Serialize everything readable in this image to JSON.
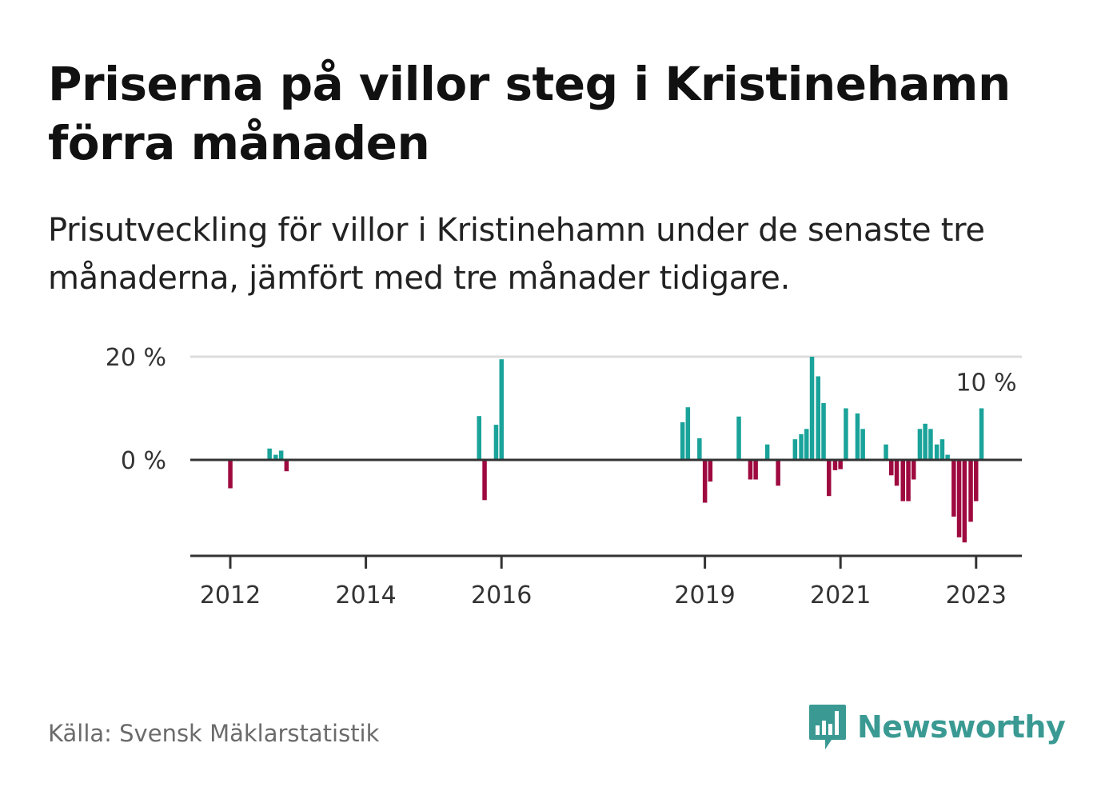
{
  "title": "Priserna på villor steg i Kristinehamn förra månaden",
  "subtitle": "Prisutveckling för villor i Kristinehamn under de senaste tre månaderna, jämfört med tre månader tidigare.",
  "source": "Källa: Svensk Mäklarstatistik",
  "brand": {
    "name": "Newsworthy",
    "logo_icon": "newsworthy-logo-icon",
    "color": "#3a9a93"
  },
  "colors": {
    "positive": "#1aa39a",
    "negative": "#9e0a3f",
    "grid": "#dddddd",
    "axis": "#333333"
  },
  "chart_data": {
    "type": "bar",
    "ylim": [
      -18,
      20
    ],
    "yticks": [
      {
        "value": 20,
        "label": "20 %"
      },
      {
        "value": 0,
        "label": "0 %"
      }
    ],
    "xlim": [
      2011.4,
      2023.7
    ],
    "xticks": [
      {
        "value": 2012,
        "label": "2012"
      },
      {
        "value": 2014,
        "label": "2014"
      },
      {
        "value": 2016,
        "label": "2016"
      },
      {
        "value": 2019,
        "label": "2019"
      },
      {
        "value": 2021,
        "label": "2021"
      },
      {
        "value": 2023,
        "label": "2023"
      }
    ],
    "annotation": {
      "label": "10 %",
      "x": 2023.08,
      "y": 10
    },
    "series": [
      {
        "points": [
          [
            2012.0,
            -5.5
          ],
          [
            2012.58,
            2.2
          ],
          [
            2012.67,
            1.0
          ],
          [
            2012.75,
            1.8
          ],
          [
            2012.83,
            -2.2
          ],
          [
            2015.67,
            8.5
          ],
          [
            2015.75,
            -7.8
          ],
          [
            2015.92,
            6.8
          ],
          [
            2016.0,
            19.5
          ],
          [
            2018.67,
            7.3
          ],
          [
            2018.75,
            10.2
          ],
          [
            2018.92,
            4.2
          ],
          [
            2019.0,
            -8.3
          ],
          [
            2019.08,
            -4.2
          ],
          [
            2019.5,
            8.4
          ],
          [
            2019.67,
            -3.8
          ],
          [
            2019.75,
            -3.8
          ],
          [
            2019.92,
            3.0
          ],
          [
            2020.08,
            -5.0
          ],
          [
            2020.33,
            4.0
          ],
          [
            2020.42,
            5.0
          ],
          [
            2020.5,
            6.0
          ],
          [
            2020.58,
            20.0
          ],
          [
            2020.67,
            16.2
          ],
          [
            2020.75,
            11.0
          ],
          [
            2020.83,
            -7.0
          ],
          [
            2020.92,
            -2.0
          ],
          [
            2021.0,
            -1.8
          ],
          [
            2021.08,
            10.0
          ],
          [
            2021.25,
            9.0
          ],
          [
            2021.33,
            6.0
          ],
          [
            2021.67,
            3.0
          ],
          [
            2021.75,
            -3.0
          ],
          [
            2021.83,
            -5.0
          ],
          [
            2021.92,
            -8.0
          ],
          [
            2022.0,
            -8.0
          ],
          [
            2022.08,
            -3.8
          ],
          [
            2022.17,
            6.0
          ],
          [
            2022.25,
            7.0
          ],
          [
            2022.33,
            6.0
          ],
          [
            2022.42,
            3.0
          ],
          [
            2022.5,
            4.0
          ],
          [
            2022.58,
            1.0
          ],
          [
            2022.67,
            -11.0
          ],
          [
            2022.75,
            -15.0
          ],
          [
            2022.83,
            -16.0
          ],
          [
            2022.92,
            -12.0
          ],
          [
            2023.0,
            -8.0
          ],
          [
            2023.08,
            10.0
          ]
        ]
      }
    ]
  }
}
